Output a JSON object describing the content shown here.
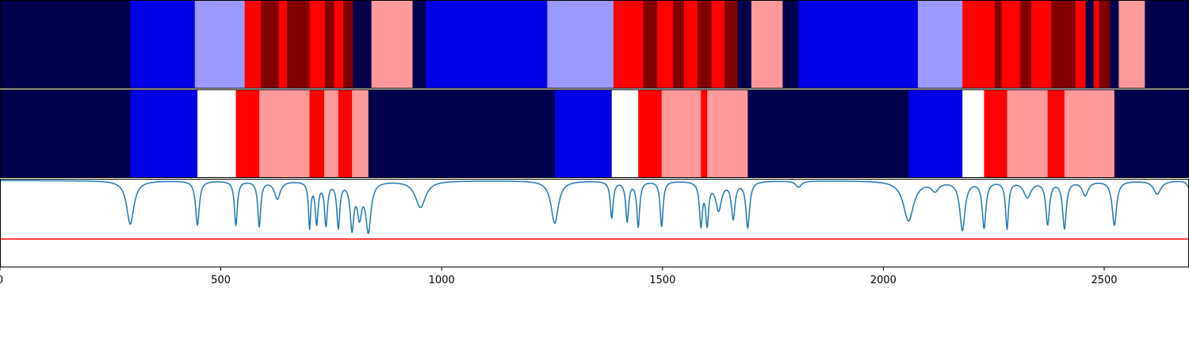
{
  "chart_data": [
    {
      "type": "heatmap",
      "row": "top",
      "x_range": [
        0,
        2692
      ],
      "segment_ends": [
        295,
        441,
        554,
        591,
        631,
        650,
        701,
        736,
        756,
        777,
        799,
        841,
        934,
        964,
        1239,
        1389,
        1456,
        1488,
        1524,
        1549,
        1579,
        1611,
        1640,
        1670,
        1701,
        1772,
        1808,
        2078,
        2179,
        2252,
        2268,
        2310,
        2335,
        2380,
        2435,
        2458,
        2476,
        2488,
        2513,
        2533,
        2592,
        2622,
        2692
      ],
      "segment_states": [
        0,
        1,
        2,
        3,
        4,
        3,
        4,
        3,
        4,
        3,
        4,
        0,
        5,
        0,
        1,
        2,
        3,
        4,
        3,
        4,
        3,
        4,
        3,
        4,
        0,
        5,
        0,
        1,
        2,
        3,
        4,
        3,
        4,
        3,
        4,
        3,
        0,
        3,
        4,
        0,
        5,
        0,
        0
      ]
    },
    {
      "type": "heatmap",
      "row": "middle",
      "x_range": [
        0,
        2692
      ],
      "segment_ends": [
        295,
        447,
        534,
        587,
        701,
        734,
        766,
        797,
        834,
        1256,
        1385,
        1445,
        1498,
        1587,
        1601,
        1693,
        2057,
        2179,
        2228,
        2280,
        2372,
        2410,
        2523,
        2692
      ],
      "segment_states": [
        0,
        1,
        2,
        3,
        5,
        3,
        5,
        3,
        5,
        0,
        1,
        2,
        3,
        5,
        3,
        5,
        0,
        1,
        2,
        3,
        5,
        3,
        5,
        0
      ]
    },
    {
      "type": "line",
      "row": "bottom",
      "xlim": [
        0,
        2692
      ],
      "ylim": [
        0,
        1
      ],
      "xticks": [
        "0",
        "500",
        "1000",
        "1500",
        "2000",
        "2500"
      ],
      "threshold": 0.32,
      "baseline": 0.98,
      "dips": [
        [
          295,
          0.49,
          10
        ],
        [
          447,
          0.48,
          5
        ],
        [
          534,
          0.48,
          4
        ],
        [
          587,
          0.47,
          4
        ],
        [
          628,
          0.78,
          8
        ],
        [
          701,
          0.47,
          3
        ],
        [
          717,
          0.52,
          4
        ],
        [
          738,
          0.5,
          4
        ],
        [
          766,
          0.47,
          4
        ],
        [
          797,
          0.47,
          5
        ],
        [
          814,
          0.62,
          6
        ],
        [
          834,
          0.43,
          7
        ],
        [
          952,
          0.68,
          14
        ],
        [
          1256,
          0.5,
          10
        ],
        [
          1385,
          0.57,
          4
        ],
        [
          1420,
          0.53,
          4
        ],
        [
          1445,
          0.47,
          4
        ],
        [
          1498,
          0.47,
          4
        ],
        [
          1587,
          0.5,
          4
        ],
        [
          1601,
          0.52,
          4
        ],
        [
          1627,
          0.66,
          8
        ],
        [
          1660,
          0.57,
          5
        ],
        [
          1693,
          0.46,
          5
        ],
        [
          1808,
          0.91,
          8
        ],
        [
          2057,
          0.53,
          14
        ],
        [
          2117,
          0.88,
          10
        ],
        [
          2179,
          0.43,
          7
        ],
        [
          2228,
          0.46,
          5
        ],
        [
          2280,
          0.45,
          4
        ],
        [
          2326,
          0.8,
          10
        ],
        [
          2372,
          0.5,
          5
        ],
        [
          2410,
          0.45,
          5
        ],
        [
          2457,
          0.82,
          8
        ],
        [
          2523,
          0.48,
          6
        ],
        [
          2620,
          0.83,
          10
        ],
        [
          2690,
          0.92,
          5
        ]
      ]
    }
  ],
  "colors": {
    "states": [
      "#00004c",
      "#0000e6",
      "#9a9aff",
      "#ff0000",
      "#800000",
      "#ff9a9a"
    ],
    "middle_state_2": "#ffffff",
    "line": "#1f77b4",
    "threshold": "#ff0000",
    "separator": "#ffffff",
    "frame": "#000000"
  }
}
